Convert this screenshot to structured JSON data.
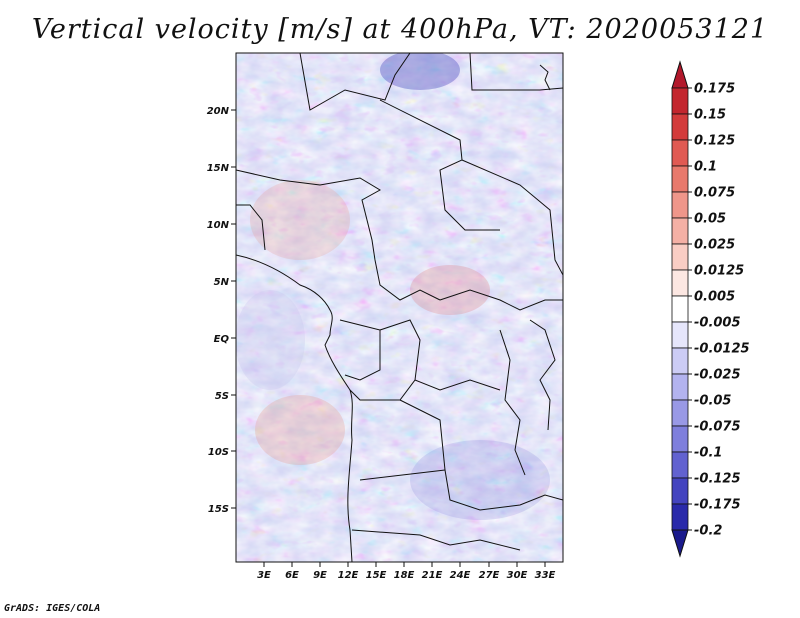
{
  "title": "Vertical velocity [m/s] at 400hPa, VT: 2020053121",
  "credit": "GrADS: IGES/COLA",
  "lat_labels": [
    "20N",
    "15N",
    "10N",
    "5N",
    "EQ",
    "5S",
    "10S",
    "15S"
  ],
  "lon_labels": [
    "3E",
    "6E",
    "9E",
    "12E",
    "15E",
    "18E",
    "21E",
    "24E",
    "27E",
    "30E",
    "33E"
  ],
  "colorbar": {
    "labels": [
      "0.175",
      "0.15",
      "0.125",
      "0.1",
      "0.075",
      "0.05",
      "0.025",
      "0.0125",
      "0.005",
      "-0.005",
      "-0.0125",
      "-0.025",
      "-0.05",
      "-0.075",
      "-0.1",
      "-0.125",
      "-0.175",
      "-0.2"
    ],
    "colors": [
      "#b2182b",
      "#c3262e",
      "#d33b3b",
      "#e05a53",
      "#e8796c",
      "#ef968a",
      "#f4b0a5",
      "#f9cdc4",
      "#fce7e2",
      "#ffffff",
      "#e6e6fb",
      "#ccccf5",
      "#b3b3ef",
      "#9999e6",
      "#7f7fdc",
      "#6262d0",
      "#4444bf",
      "#2a2aaa",
      "#1a1a8c"
    ]
  },
  "colors": {
    "background": "#ffffff",
    "ocean_neutral": "#d9d9f2"
  }
}
